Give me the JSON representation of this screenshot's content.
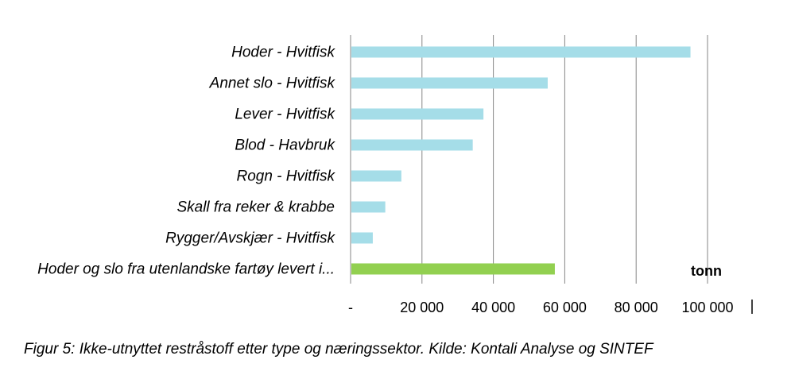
{
  "chart_data": {
    "type": "bar",
    "orientation": "horizontal",
    "categories": [
      "Hoder - Hvitfisk",
      "Annet slo - Hvitfisk",
      "Lever - Hvitfisk",
      "Blod - Havbruk",
      "Rogn - Hvitfisk",
      "Skall fra reker & krabbe",
      "Rygger/Avskjær - Hvitfisk",
      "Hoder og slo fra utenlandske fartøy levert i..."
    ],
    "values": [
      95000,
      55000,
      37000,
      34000,
      14000,
      9500,
      6000,
      57000
    ],
    "bar_colors": [
      "#a5dde8",
      "#a5dde8",
      "#a5dde8",
      "#a5dde8",
      "#a5dde8",
      "#a5dde8",
      "#a5dde8",
      "#92d050"
    ],
    "xlim": [
      0,
      100000
    ],
    "x_ticks": [
      0,
      20000,
      40000,
      60000,
      80000,
      100000
    ],
    "x_tick_labels": [
      "-",
      "20 000",
      "40 000",
      "60 000",
      "80 000",
      "100 000"
    ],
    "unit_label": "tonn",
    "grid": "vertical",
    "gridline_color": "#868686"
  },
  "caption": "Figur 5: Ikke-utnyttet restråstoff etter type og næringssektor. Kilde: Kontali Analyse og SINTEF"
}
